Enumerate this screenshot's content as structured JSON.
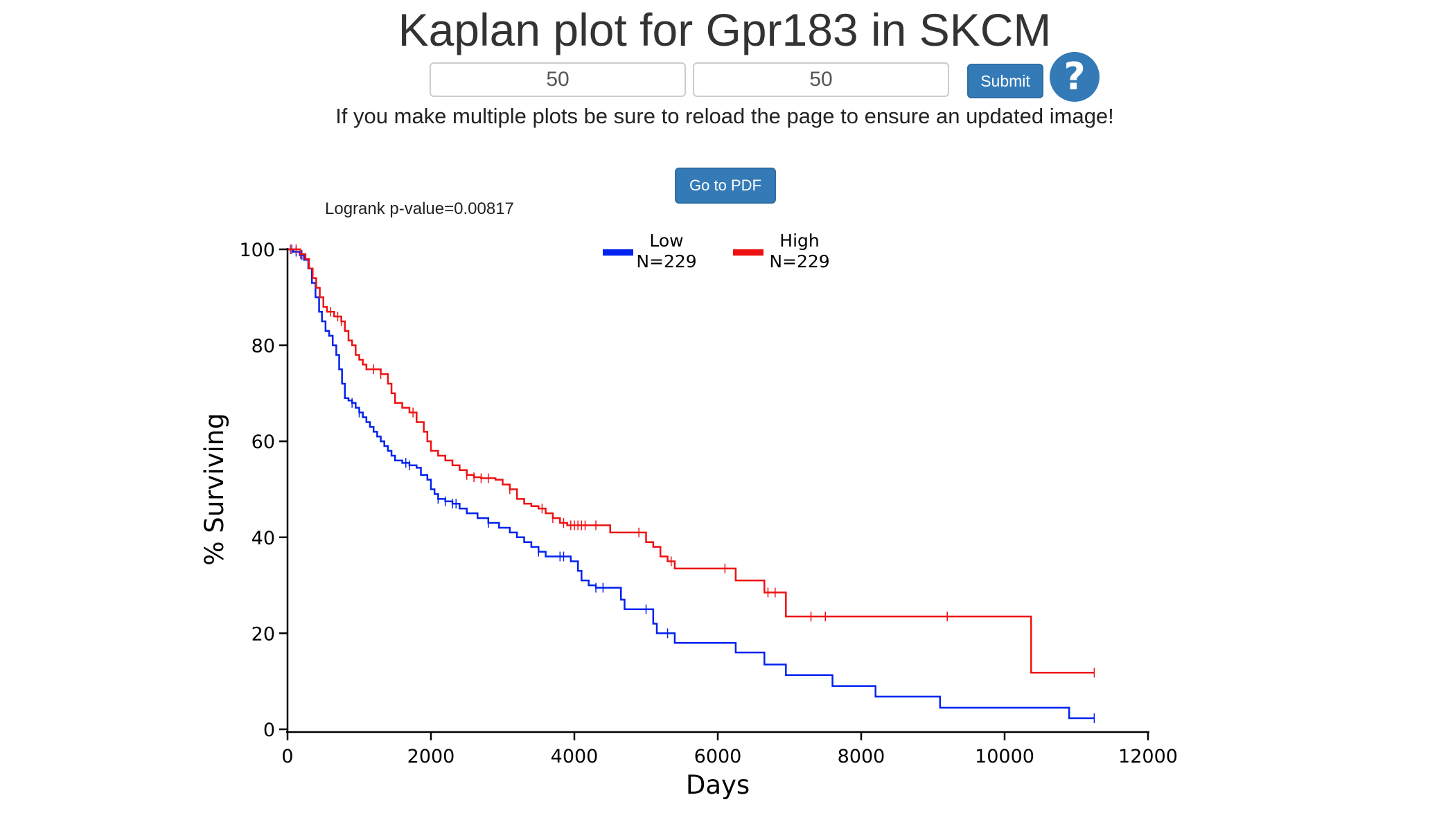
{
  "page": {
    "title": "Kaplan plot for Gpr183 in SKCM",
    "inputs": [
      {
        "value": "50"
      },
      {
        "value": "50"
      }
    ],
    "submit_label": "Submit",
    "help_icon": "question-circle-icon",
    "note": "If you make multiple plots be sure to reload the page to ensure an updated image!",
    "pdf_label": "Go to PDF",
    "button_color": "#337ab7"
  },
  "chart_data": {
    "type": "line",
    "title": "",
    "annotation": "Logrank p-value=0.00817",
    "xlabel": "Days",
    "ylabel": "% Surviving",
    "xlim": [
      0,
      12000
    ],
    "ylim": [
      0,
      100
    ],
    "xticks": [
      0,
      2000,
      4000,
      6000,
      8000,
      10000,
      12000
    ],
    "yticks": [
      0,
      20,
      40,
      60,
      80,
      100
    ],
    "grid": false,
    "legend_position": "top-center",
    "series": [
      {
        "name": "Low",
        "label": "N=229",
        "color": "#0022ee",
        "steps": [
          [
            0,
            100
          ],
          [
            80,
            99.5
          ],
          [
            170,
            98.8
          ],
          [
            230,
            97.8
          ],
          [
            290,
            96
          ],
          [
            340,
            93
          ],
          [
            390,
            90
          ],
          [
            440,
            87
          ],
          [
            480,
            85
          ],
          [
            530,
            83
          ],
          [
            580,
            82
          ],
          [
            630,
            80
          ],
          [
            680,
            78
          ],
          [
            720,
            75
          ],
          [
            760,
            72
          ],
          [
            800,
            69
          ],
          [
            850,
            68.5
          ],
          [
            900,
            68
          ],
          [
            950,
            67
          ],
          [
            1000,
            66
          ],
          [
            1050,
            65
          ],
          [
            1100,
            64
          ],
          [
            1150,
            63
          ],
          [
            1200,
            62
          ],
          [
            1250,
            61
          ],
          [
            1300,
            60
          ],
          [
            1350,
            59
          ],
          [
            1400,
            58
          ],
          [
            1450,
            57
          ],
          [
            1500,
            56
          ],
          [
            1600,
            55.5
          ],
          [
            1700,
            55
          ],
          [
            1800,
            54.5
          ],
          [
            1860,
            53
          ],
          [
            1950,
            52
          ],
          [
            2000,
            50
          ],
          [
            2050,
            49
          ],
          [
            2100,
            48
          ],
          [
            2200,
            47.5
          ],
          [
            2300,
            47
          ],
          [
            2400,
            46
          ],
          [
            2500,
            45
          ],
          [
            2650,
            44
          ],
          [
            2800,
            43
          ],
          [
            2950,
            42
          ],
          [
            3100,
            41
          ],
          [
            3200,
            40
          ],
          [
            3300,
            39
          ],
          [
            3400,
            38
          ],
          [
            3500,
            37
          ],
          [
            3600,
            36
          ],
          [
            3800,
            36
          ],
          [
            3950,
            35
          ],
          [
            4050,
            33
          ],
          [
            4100,
            31
          ],
          [
            4200,
            30
          ],
          [
            4300,
            29.5
          ],
          [
            4500,
            29.5
          ],
          [
            4650,
            27
          ],
          [
            4700,
            25
          ],
          [
            5000,
            25
          ],
          [
            5100,
            22
          ],
          [
            5150,
            20
          ],
          [
            5300,
            20
          ],
          [
            5400,
            18
          ],
          [
            6200,
            18
          ],
          [
            6250,
            16
          ],
          [
            6600,
            16
          ],
          [
            6650,
            13.5
          ],
          [
            6900,
            13.5
          ],
          [
            6950,
            11.3
          ],
          [
            7550,
            11.3
          ],
          [
            7600,
            9
          ],
          [
            8150,
            9
          ],
          [
            8200,
            6.8
          ],
          [
            9050,
            6.8
          ],
          [
            9100,
            4.5
          ],
          [
            10850,
            4.5
          ],
          [
            10900,
            2.3
          ],
          [
            11250,
            2.3
          ]
        ],
        "censor": [
          [
            60,
            100
          ],
          [
            120,
            99.5
          ],
          [
            200,
            98.8
          ],
          [
            900,
            68
          ],
          [
            1000,
            66
          ],
          [
            1650,
            55.5
          ],
          [
            1700,
            55
          ],
          [
            2100,
            48
          ],
          [
            2200,
            47.5
          ],
          [
            2300,
            47
          ],
          [
            2350,
            47
          ],
          [
            2800,
            43
          ],
          [
            3500,
            37
          ],
          [
            3800,
            36
          ],
          [
            3850,
            36
          ],
          [
            4300,
            29.5
          ],
          [
            4400,
            29.5
          ],
          [
            5000,
            25
          ],
          [
            5300,
            20
          ],
          [
            11250,
            2.3
          ]
        ]
      },
      {
        "name": "High",
        "label": "N=229",
        "color": "#ee1111",
        "steps": [
          [
            0,
            100
          ],
          [
            180,
            99
          ],
          [
            250,
            98
          ],
          [
            300,
            96
          ],
          [
            350,
            94
          ],
          [
            400,
            92
          ],
          [
            450,
            90
          ],
          [
            500,
            88
          ],
          [
            550,
            87
          ],
          [
            650,
            86
          ],
          [
            750,
            85
          ],
          [
            800,
            83
          ],
          [
            850,
            81
          ],
          [
            900,
            80
          ],
          [
            950,
            78
          ],
          [
            1000,
            77
          ],
          [
            1050,
            76
          ],
          [
            1100,
            75
          ],
          [
            1300,
            74
          ],
          [
            1400,
            72
          ],
          [
            1450,
            70
          ],
          [
            1500,
            68
          ],
          [
            1600,
            67
          ],
          [
            1700,
            66
          ],
          [
            1800,
            64
          ],
          [
            1900,
            62
          ],
          [
            1950,
            60
          ],
          [
            2000,
            58
          ],
          [
            2100,
            57
          ],
          [
            2200,
            56
          ],
          [
            2300,
            55
          ],
          [
            2400,
            54
          ],
          [
            2500,
            53
          ],
          [
            2600,
            52.5
          ],
          [
            2700,
            52.3
          ],
          [
            2900,
            52
          ],
          [
            3000,
            51
          ],
          [
            3100,
            50
          ],
          [
            3200,
            48
          ],
          [
            3300,
            47
          ],
          [
            3400,
            46.5
          ],
          [
            3500,
            46
          ],
          [
            3600,
            45
          ],
          [
            3700,
            44
          ],
          [
            3800,
            43
          ],
          [
            3900,
            42.5
          ],
          [
            4100,
            42.5
          ],
          [
            4400,
            42.5
          ],
          [
            4500,
            41
          ],
          [
            4900,
            41
          ],
          [
            5000,
            39
          ],
          [
            5100,
            38
          ],
          [
            5200,
            36
          ],
          [
            5300,
            35
          ],
          [
            5400,
            33.5
          ],
          [
            6100,
            33.5
          ],
          [
            6250,
            31
          ],
          [
            6600,
            31
          ],
          [
            6650,
            28.5
          ],
          [
            6900,
            28.5
          ],
          [
            6950,
            23.5
          ],
          [
            10350,
            23.5
          ],
          [
            10370,
            11.8
          ],
          [
            11250,
            11.8
          ]
        ],
        "censor": [
          [
            40,
            100
          ],
          [
            120,
            100
          ],
          [
            180,
            99
          ],
          [
            600,
            87
          ],
          [
            700,
            86
          ],
          [
            750,
            85
          ],
          [
            1200,
            75
          ],
          [
            1300,
            74
          ],
          [
            1750,
            66
          ],
          [
            2500,
            53
          ],
          [
            2600,
            52.5
          ],
          [
            2700,
            52.3
          ],
          [
            2800,
            52.3
          ],
          [
            3100,
            50
          ],
          [
            3550,
            46
          ],
          [
            3700,
            44
          ],
          [
            3850,
            43
          ],
          [
            3950,
            42.5
          ],
          [
            4000,
            42.5
          ],
          [
            4050,
            42.5
          ],
          [
            4100,
            42.5
          ],
          [
            4150,
            42.5
          ],
          [
            4300,
            42.5
          ],
          [
            4900,
            41
          ],
          [
            5350,
            35
          ],
          [
            6100,
            33.5
          ],
          [
            6700,
            28.5
          ],
          [
            6800,
            28.5
          ],
          [
            7300,
            23.5
          ],
          [
            7500,
            23.5
          ],
          [
            9200,
            23.5
          ],
          [
            11250,
            11.8
          ]
        ]
      }
    ]
  }
}
